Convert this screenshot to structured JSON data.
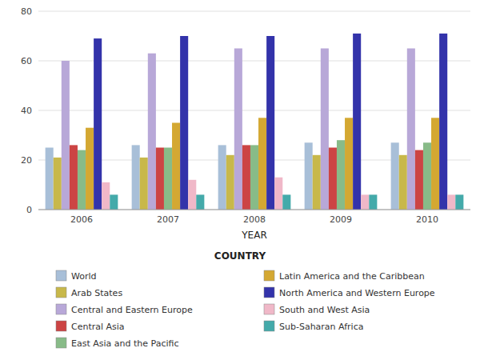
{
  "chart_data": {
    "type": "bar",
    "xlabel": "YEAR",
    "legend_title": "COUNTRY",
    "categories": [
      "2006",
      "2007",
      "2008",
      "2009",
      "2010"
    ],
    "series": [
      {
        "name": "World",
        "color": "#a8bfd8",
        "values": [
          25,
          26,
          26,
          27,
          27
        ]
      },
      {
        "name": "Arab States",
        "color": "#c8b84a",
        "values": [
          21,
          21,
          22,
          22,
          22
        ]
      },
      {
        "name": "Central and Eastern Europe",
        "color": "#b8a8d8",
        "values": [
          60,
          63,
          65,
          65,
          65
        ]
      },
      {
        "name": "Central Asia",
        "color": "#cc4444",
        "values": [
          26,
          25,
          26,
          25,
          24
        ]
      },
      {
        "name": "East Asia and the Pacific",
        "color": "#88bb88",
        "values": [
          24,
          25,
          26,
          28,
          27
        ]
      },
      {
        "name": "Latin America and the Caribbean",
        "color": "#d4a832",
        "values": [
          33,
          35,
          37,
          37,
          37
        ]
      },
      {
        "name": "North America and Western Europe",
        "color": "#3333aa",
        "values": [
          69,
          70,
          70,
          71,
          71
        ]
      },
      {
        "name": "South and West Asia",
        "color": "#f0b8c8",
        "values": [
          11,
          12,
          13,
          6,
          6
        ]
      },
      {
        "name": "Sub-Saharan Africa",
        "color": "#44aaaa",
        "values": [
          6,
          6,
          6,
          6,
          6
        ]
      }
    ],
    "ylim": [
      0,
      80
    ],
    "yticks": [
      0,
      20,
      40,
      60,
      80
    ],
    "grid": true,
    "legend": "bottom"
  }
}
